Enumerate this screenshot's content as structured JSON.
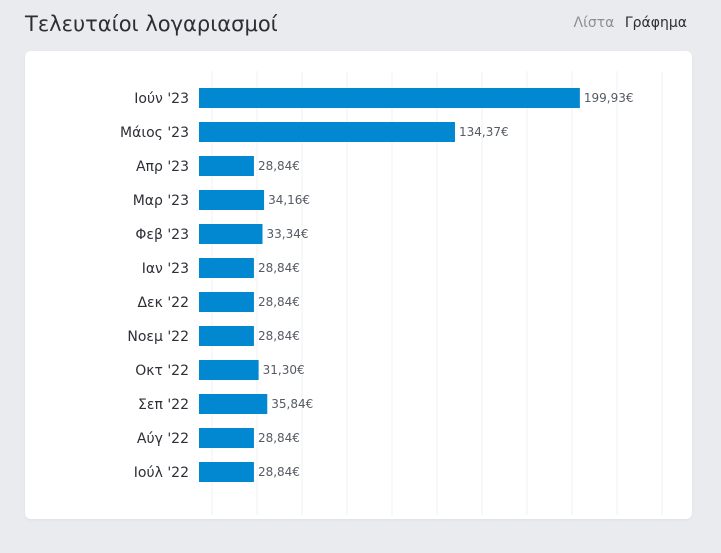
{
  "header": {
    "title": "Τελευταίοι λογαριασμοί",
    "toggle_list": "Λίστα",
    "toggle_chart": "Γράφημα"
  },
  "colors": {
    "bar": "#0288d1",
    "active_toggle": "#2c2f36",
    "inactive_toggle": "#8a8e96"
  },
  "chart_data": {
    "type": "bar",
    "orientation": "horizontal",
    "title": "",
    "xlabel": "",
    "ylabel": "",
    "xlim": [
      0,
      200
    ],
    "grid": true,
    "categories": [
      "Ιούν '23",
      "Μάιος '23",
      "Απρ '23",
      "Μαρ '23",
      "Φεβ '23",
      "Ιαν '23",
      "Δεκ '22",
      "Νοεμ '22",
      "Οκτ '22",
      "Σεπ '22",
      "Αύγ '22",
      "Ιούλ '22"
    ],
    "values": [
      199.93,
      134.37,
      28.84,
      34.16,
      33.34,
      28.84,
      28.84,
      28.84,
      31.3,
      35.84,
      28.84,
      28.84
    ],
    "value_labels": [
      "199,93€",
      "134,37€",
      "28,84€",
      "34,16€",
      "33,34€",
      "28,84€",
      "28,84€",
      "28,84€",
      "31,30€",
      "35,84€",
      "28,84€",
      "28,84€"
    ]
  }
}
